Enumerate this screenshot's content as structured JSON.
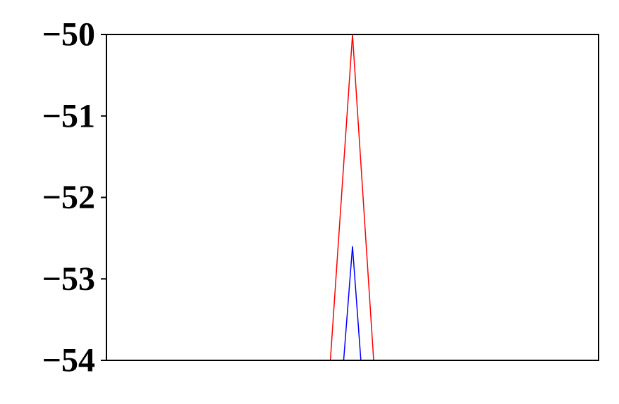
{
  "chart_data": {
    "type": "line",
    "title": "",
    "xlabel": "",
    "ylabel": "",
    "xlim": [
      0,
      1
    ],
    "ylim": [
      -54,
      -50
    ],
    "y_ticks": [
      -50,
      -51,
      -52,
      -53,
      -54
    ],
    "y_tick_labels": [
      "−50",
      "−51",
      "−52",
      "−53",
      "−54"
    ],
    "x_ticks_visible": false,
    "grid": false,
    "legend": "none",
    "series": [
      {
        "color": "#ff0000",
        "x": [
          0.455,
          0.5,
          0.543
        ],
        "y": [
          -54,
          -50,
          -54
        ]
      },
      {
        "color": "#0000ff",
        "x": [
          0.482,
          0.5,
          0.517
        ],
        "y": [
          -54,
          -52.6,
          -54
        ]
      }
    ]
  }
}
